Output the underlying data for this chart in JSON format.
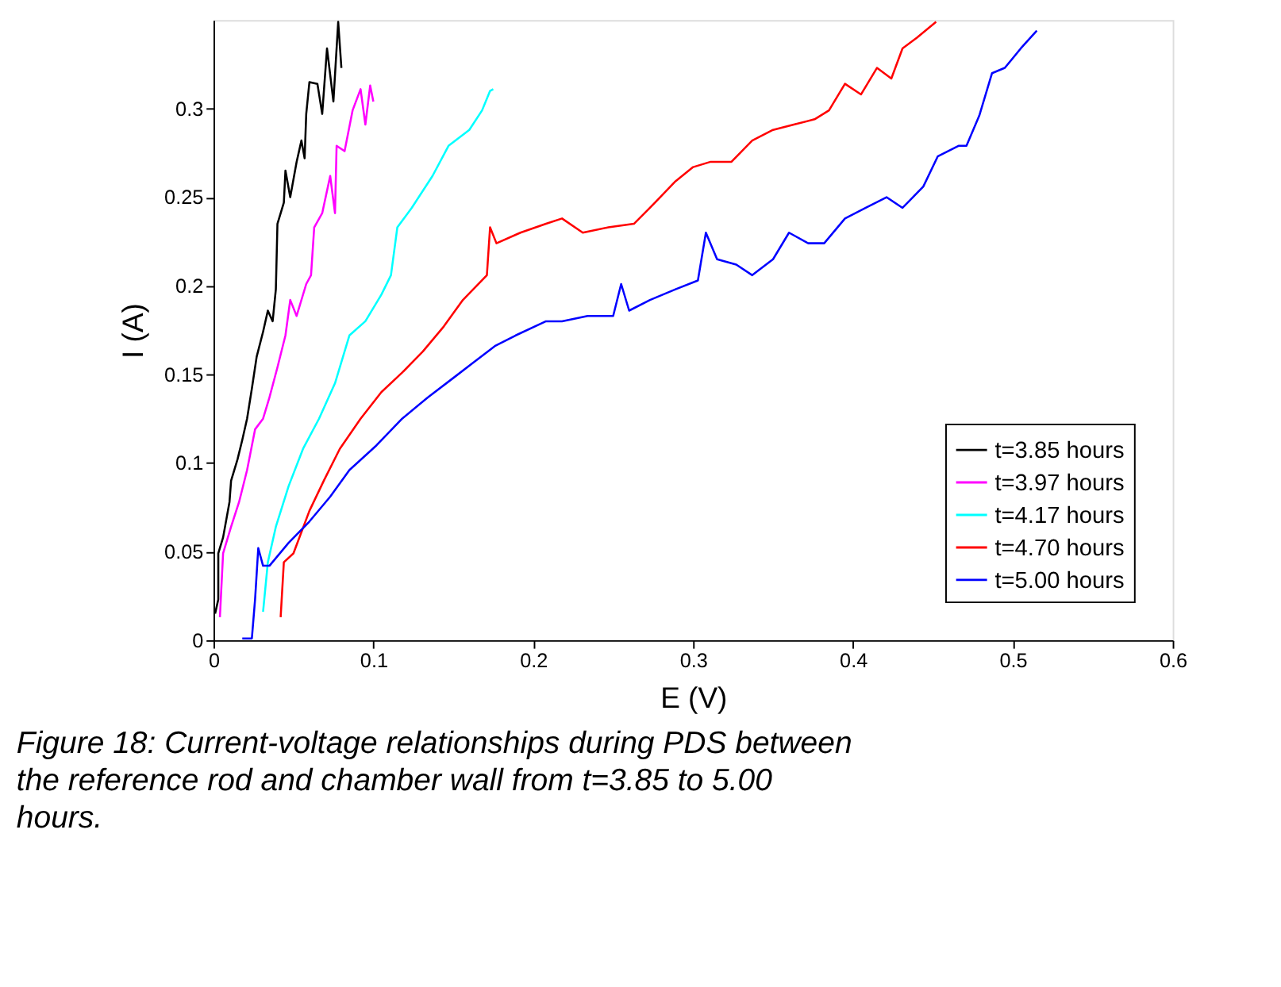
{
  "chart_data": {
    "type": "line",
    "xlabel": "E (V)",
    "ylabel": "I (A)",
    "xlim": [
      0,
      0.6
    ],
    "ylim": [
      0,
      0.35
    ],
    "xticks": [
      0,
      0.1,
      0.2,
      0.3,
      0.4,
      0.5,
      0.6
    ],
    "yticks": [
      0,
      0.05,
      0.1,
      0.15,
      0.2,
      0.25,
      0.3
    ],
    "grid": false,
    "legend": "bottom right",
    "line_style": "solid",
    "marker": "none",
    "annotations": [
      "Figure 18: Current-voltage relationships during PDS between the reference rod and chamber wall from t=3.85 to 5.00 hours."
    ],
    "series": [
      {
        "name": "t=3.85 hours",
        "color": "#000000",
        "x": [
          0.001,
          0.003,
          0.003,
          0.006,
          0.01,
          0.011,
          0.015,
          0.018,
          0.021,
          0.024,
          0.027,
          0.031,
          0.034,
          0.037,
          0.039,
          0.04,
          0.044,
          0.045,
          0.048,
          0.052,
          0.055,
          0.057,
          0.058,
          0.06,
          0.065,
          0.068,
          0.071,
          0.075,
          0.078,
          0.08
        ],
        "values": [
          0.015,
          0.023,
          0.049,
          0.058,
          0.078,
          0.09,
          0.102,
          0.113,
          0.125,
          0.142,
          0.16,
          0.174,
          0.186,
          0.18,
          0.198,
          0.235,
          0.247,
          0.265,
          0.25,
          0.27,
          0.282,
          0.272,
          0.297,
          0.315,
          0.314,
          0.297,
          0.334,
          0.304,
          0.349,
          0.323
        ]
      },
      {
        "name": "t=3.97 hours",
        "color": "#ff00ff",
        "x": [
          0.004,
          0.006,
          0.011,
          0.016,
          0.021,
          0.026,
          0.031,
          0.035,
          0.04,
          0.045,
          0.048,
          0.052,
          0.058,
          0.061,
          0.063,
          0.068,
          0.073,
          0.076,
          0.077,
          0.082,
          0.087,
          0.092,
          0.095,
          0.098,
          0.1
        ],
        "values": [
          0.013,
          0.049,
          0.064,
          0.078,
          0.096,
          0.119,
          0.125,
          0.137,
          0.154,
          0.172,
          0.192,
          0.183,
          0.201,
          0.206,
          0.233,
          0.241,
          0.262,
          0.241,
          0.279,
          0.276,
          0.299,
          0.311,
          0.291,
          0.313,
          0.304
        ]
      },
      {
        "name": "t=4.17 hours",
        "color": "#00ffff",
        "x": [
          0.031,
          0.034,
          0.039,
          0.047,
          0.056,
          0.066,
          0.076,
          0.085,
          0.095,
          0.105,
          0.111,
          0.115,
          0.124,
          0.137,
          0.147,
          0.16,
          0.168,
          0.173,
          0.175
        ],
        "values": [
          0.016,
          0.044,
          0.064,
          0.087,
          0.108,
          0.125,
          0.145,
          0.172,
          0.18,
          0.195,
          0.206,
          0.233,
          0.244,
          0.262,
          0.279,
          0.288,
          0.299,
          0.31,
          0.311
        ]
      },
      {
        "name": "t=4.70 hours",
        "color": "#ff0000",
        "x": [
          0.042,
          0.044,
          0.05,
          0.06,
          0.069,
          0.079,
          0.092,
          0.105,
          0.118,
          0.131,
          0.144,
          0.156,
          0.171,
          0.173,
          0.177,
          0.192,
          0.208,
          0.218,
          0.231,
          0.247,
          0.263,
          0.273,
          0.289,
          0.3,
          0.311,
          0.324,
          0.337,
          0.35,
          0.363,
          0.376,
          0.385,
          0.395,
          0.405,
          0.415,
          0.424,
          0.431,
          0.44,
          0.452
        ],
        "values": [
          0.013,
          0.044,
          0.049,
          0.073,
          0.09,
          0.108,
          0.125,
          0.14,
          0.151,
          0.163,
          0.177,
          0.192,
          0.206,
          0.233,
          0.224,
          0.23,
          0.235,
          0.238,
          0.23,
          0.233,
          0.235,
          0.244,
          0.259,
          0.267,
          0.27,
          0.27,
          0.282,
          0.288,
          0.291,
          0.294,
          0.299,
          0.314,
          0.308,
          0.323,
          0.317,
          0.334,
          0.34,
          0.349
        ]
      },
      {
        "name": "t=5.00 hours",
        "color": "#0000ff",
        "x": [
          0.018,
          0.024,
          0.026,
          0.028,
          0.031,
          0.035,
          0.047,
          0.06,
          0.073,
          0.085,
          0.102,
          0.118,
          0.134,
          0.15,
          0.163,
          0.176,
          0.189,
          0.208,
          0.218,
          0.234,
          0.25,
          0.255,
          0.26,
          0.273,
          0.289,
          0.303,
          0.308,
          0.315,
          0.327,
          0.337,
          0.35,
          0.36,
          0.372,
          0.382,
          0.395,
          0.408,
          0.421,
          0.431,
          0.444,
          0.453,
          0.466,
          0.471,
          0.479,
          0.487,
          0.495,
          0.505,
          0.515
        ],
        "values": [
          0.001,
          0.001,
          0.023,
          0.052,
          0.042,
          0.042,
          0.055,
          0.067,
          0.081,
          0.096,
          0.11,
          0.125,
          0.137,
          0.148,
          0.157,
          0.166,
          0.172,
          0.18,
          0.18,
          0.183,
          0.183,
          0.201,
          0.186,
          0.192,
          0.198,
          0.203,
          0.23,
          0.215,
          0.212,
          0.206,
          0.215,
          0.23,
          0.224,
          0.224,
          0.238,
          0.244,
          0.25,
          0.244,
          0.256,
          0.273,
          0.279,
          0.279,
          0.296,
          0.32,
          0.323,
          0.334,
          0.344
        ]
      }
    ]
  }
}
